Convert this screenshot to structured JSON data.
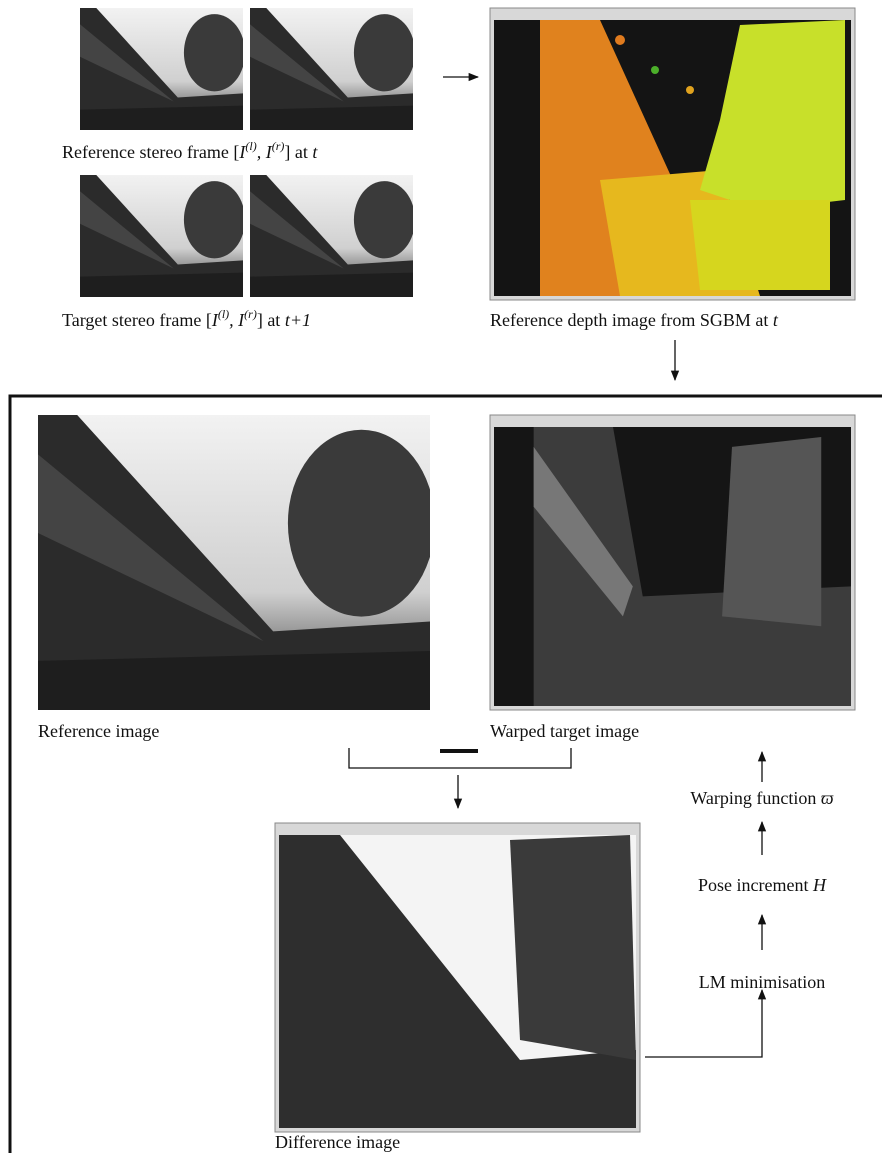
{
  "top": {
    "ref_stereo_caption": [
      "Reference stereo frame [",
      "I",
      "(l)",
      ", ",
      "I",
      "(r)",
      "] at ",
      "t"
    ],
    "target_stereo_caption": [
      "Target stereo frame [",
      "I",
      "(l)",
      ", ",
      "I",
      "(r)",
      "] at ",
      "t+1"
    ],
    "depth_caption": [
      "Reference depth image from SGBM at ",
      "t"
    ]
  },
  "main": {
    "reference_caption": "Reference image",
    "warped_caption": "Warped target image",
    "difference_caption": "Difference image",
    "steps": {
      "lm": "LM minimisation",
      "pose": [
        "Pose increment ",
        "H"
      ],
      "warp": [
        "Warping function ",
        "ϖ"
      ]
    }
  }
}
